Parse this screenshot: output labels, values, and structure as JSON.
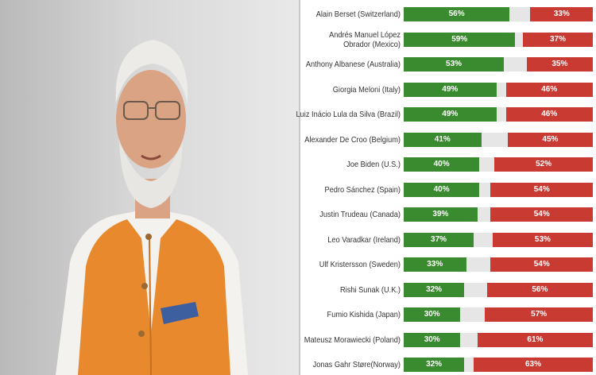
{
  "colors": {
    "approve": "#3a8a2f",
    "disapprove": "#c93a33",
    "neutral": "#e6e6e6"
  },
  "chart_data": {
    "type": "bar",
    "stacked": true,
    "orientation": "horizontal",
    "categories": [
      "Alain Berset (Switzerland)",
      "Andrés Manuel López\nObrador (Mexico)",
      "Anthony Albanese (Australia)",
      "Giorgia Meloni (Italy)",
      "Luiz Inácio Lula da Silva (Brazil)",
      "Alexander De Croo (Belgium)",
      "Joe Biden (U.S.)",
      "Pedro Sánchez (Spain)",
      "Justin Trudeau (Canada)",
      "Leo Varadkar (Ireland)",
      "Ulf Kristersson (Sweden)",
      "Rishi Sunak (U.K.)",
      "Fumio Kishida (Japan)",
      "Mateusz Morawiecki (Poland)",
      "Jonas Gahr Støre(Norway)"
    ],
    "series": [
      {
        "values": [
          56,
          59,
          53,
          49,
          49,
          41,
          40,
          40,
          39,
          37,
          33,
          32,
          30,
          30,
          32
        ],
        "labels": [
          "56%",
          "59%",
          "53%",
          "49%",
          "49%",
          "41%",
          "40%",
          "40%",
          "39%",
          "37%",
          "33%",
          "32%",
          "30%",
          "30%",
          "32%"
        ]
      },
      {
        "values": [
          11,
          4,
          12,
          5,
          5,
          14,
          8,
          6,
          7,
          10,
          13,
          12,
          13,
          9,
          5
        ],
        "labels": [
          "",
          "",
          "",
          "",
          "",
          "",
          "",
          "",
          "",
          "",
          "",
          "",
          "",
          "",
          ""
        ]
      },
      {
        "values": [
          33,
          37,
          35,
          46,
          46,
          45,
          52,
          54,
          54,
          53,
          54,
          56,
          57,
          61,
          63
        ],
        "labels": [
          "33%",
          "37%",
          "35%",
          "46%",
          "46%",
          "45%",
          "52%",
          "54%",
          "54%",
          "53%",
          "54%",
          "56%",
          "57%",
          "61%",
          "63%"
        ]
      }
    ],
    "xlim": [
      0,
      100
    ],
    "legend": "none"
  }
}
